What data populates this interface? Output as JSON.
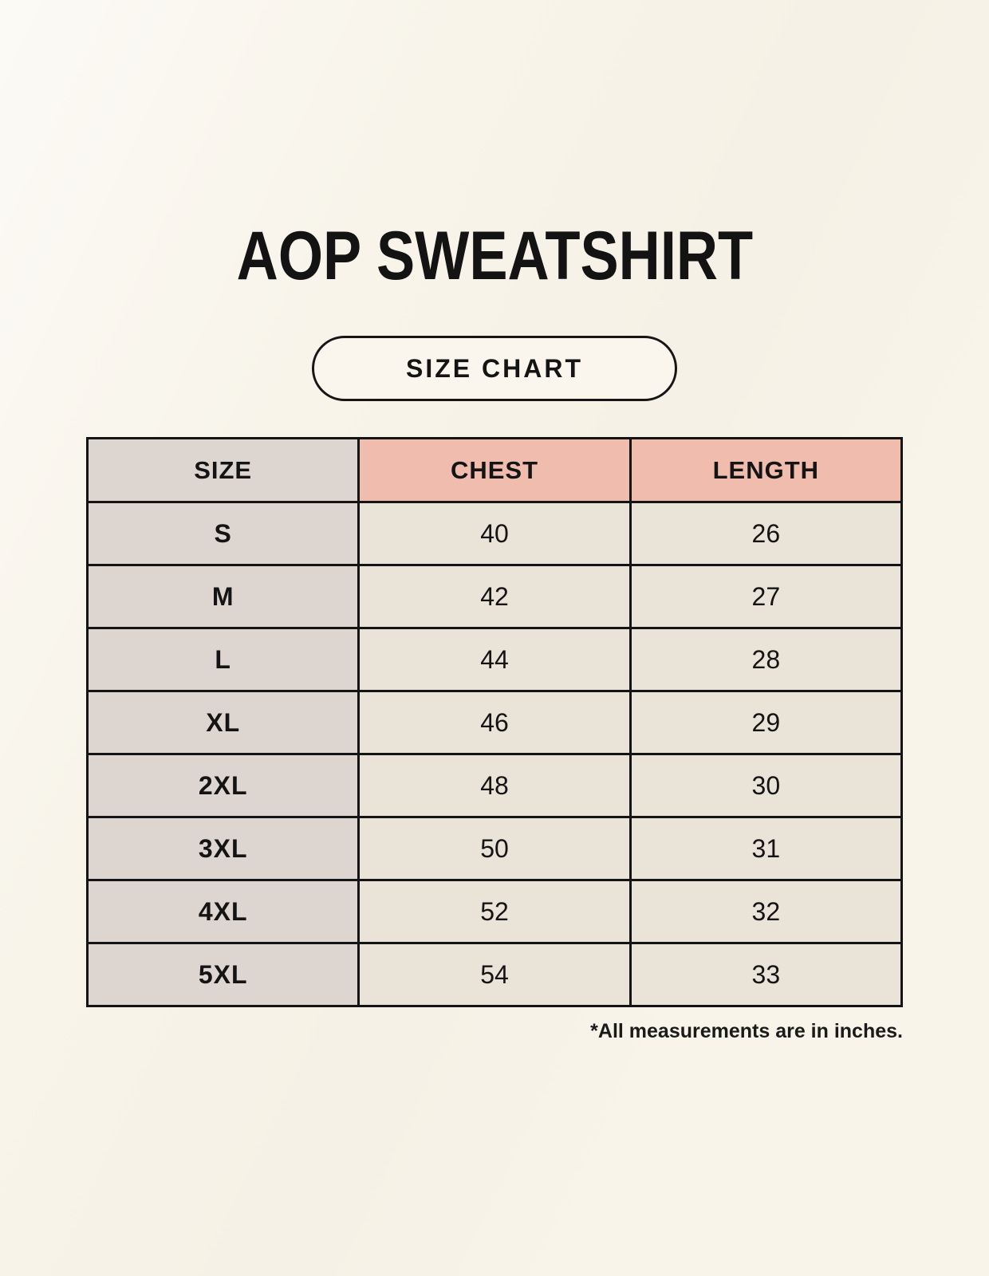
{
  "page": {
    "title": "AOP SWEATSHIRT",
    "badge_label": "SIZE CHART",
    "footnote": "*All measurements are in inches."
  },
  "colors": {
    "background": "#f8f4ea",
    "size_column_bg": "#ddd6d0",
    "measure_header_bg": "#efbcad",
    "value_cell_bg": "#eae3d8",
    "border": "#141414",
    "text": "#141414"
  },
  "chart_data": {
    "type": "table",
    "title": "AOP SWEATSHIRT",
    "subtitle": "SIZE CHART",
    "columns": [
      "SIZE",
      "CHEST",
      "LENGTH"
    ],
    "rows": [
      [
        "S",
        "40",
        "26"
      ],
      [
        "M",
        "42",
        "27"
      ],
      [
        "L",
        "44",
        "28"
      ],
      [
        "XL",
        "46",
        "29"
      ],
      [
        "2XL",
        "48",
        "30"
      ],
      [
        "3XL",
        "50",
        "31"
      ],
      [
        "4XL",
        "52",
        "32"
      ],
      [
        "5XL",
        "54",
        "33"
      ]
    ],
    "units": "inches",
    "footnote": "*All measurements are in inches.",
    "layout": {
      "header_colors": [
        "#ddd6d0",
        "#efbcad",
        "#efbcad"
      ],
      "grid": true,
      "column_count": 3,
      "row_count": 8
    }
  }
}
